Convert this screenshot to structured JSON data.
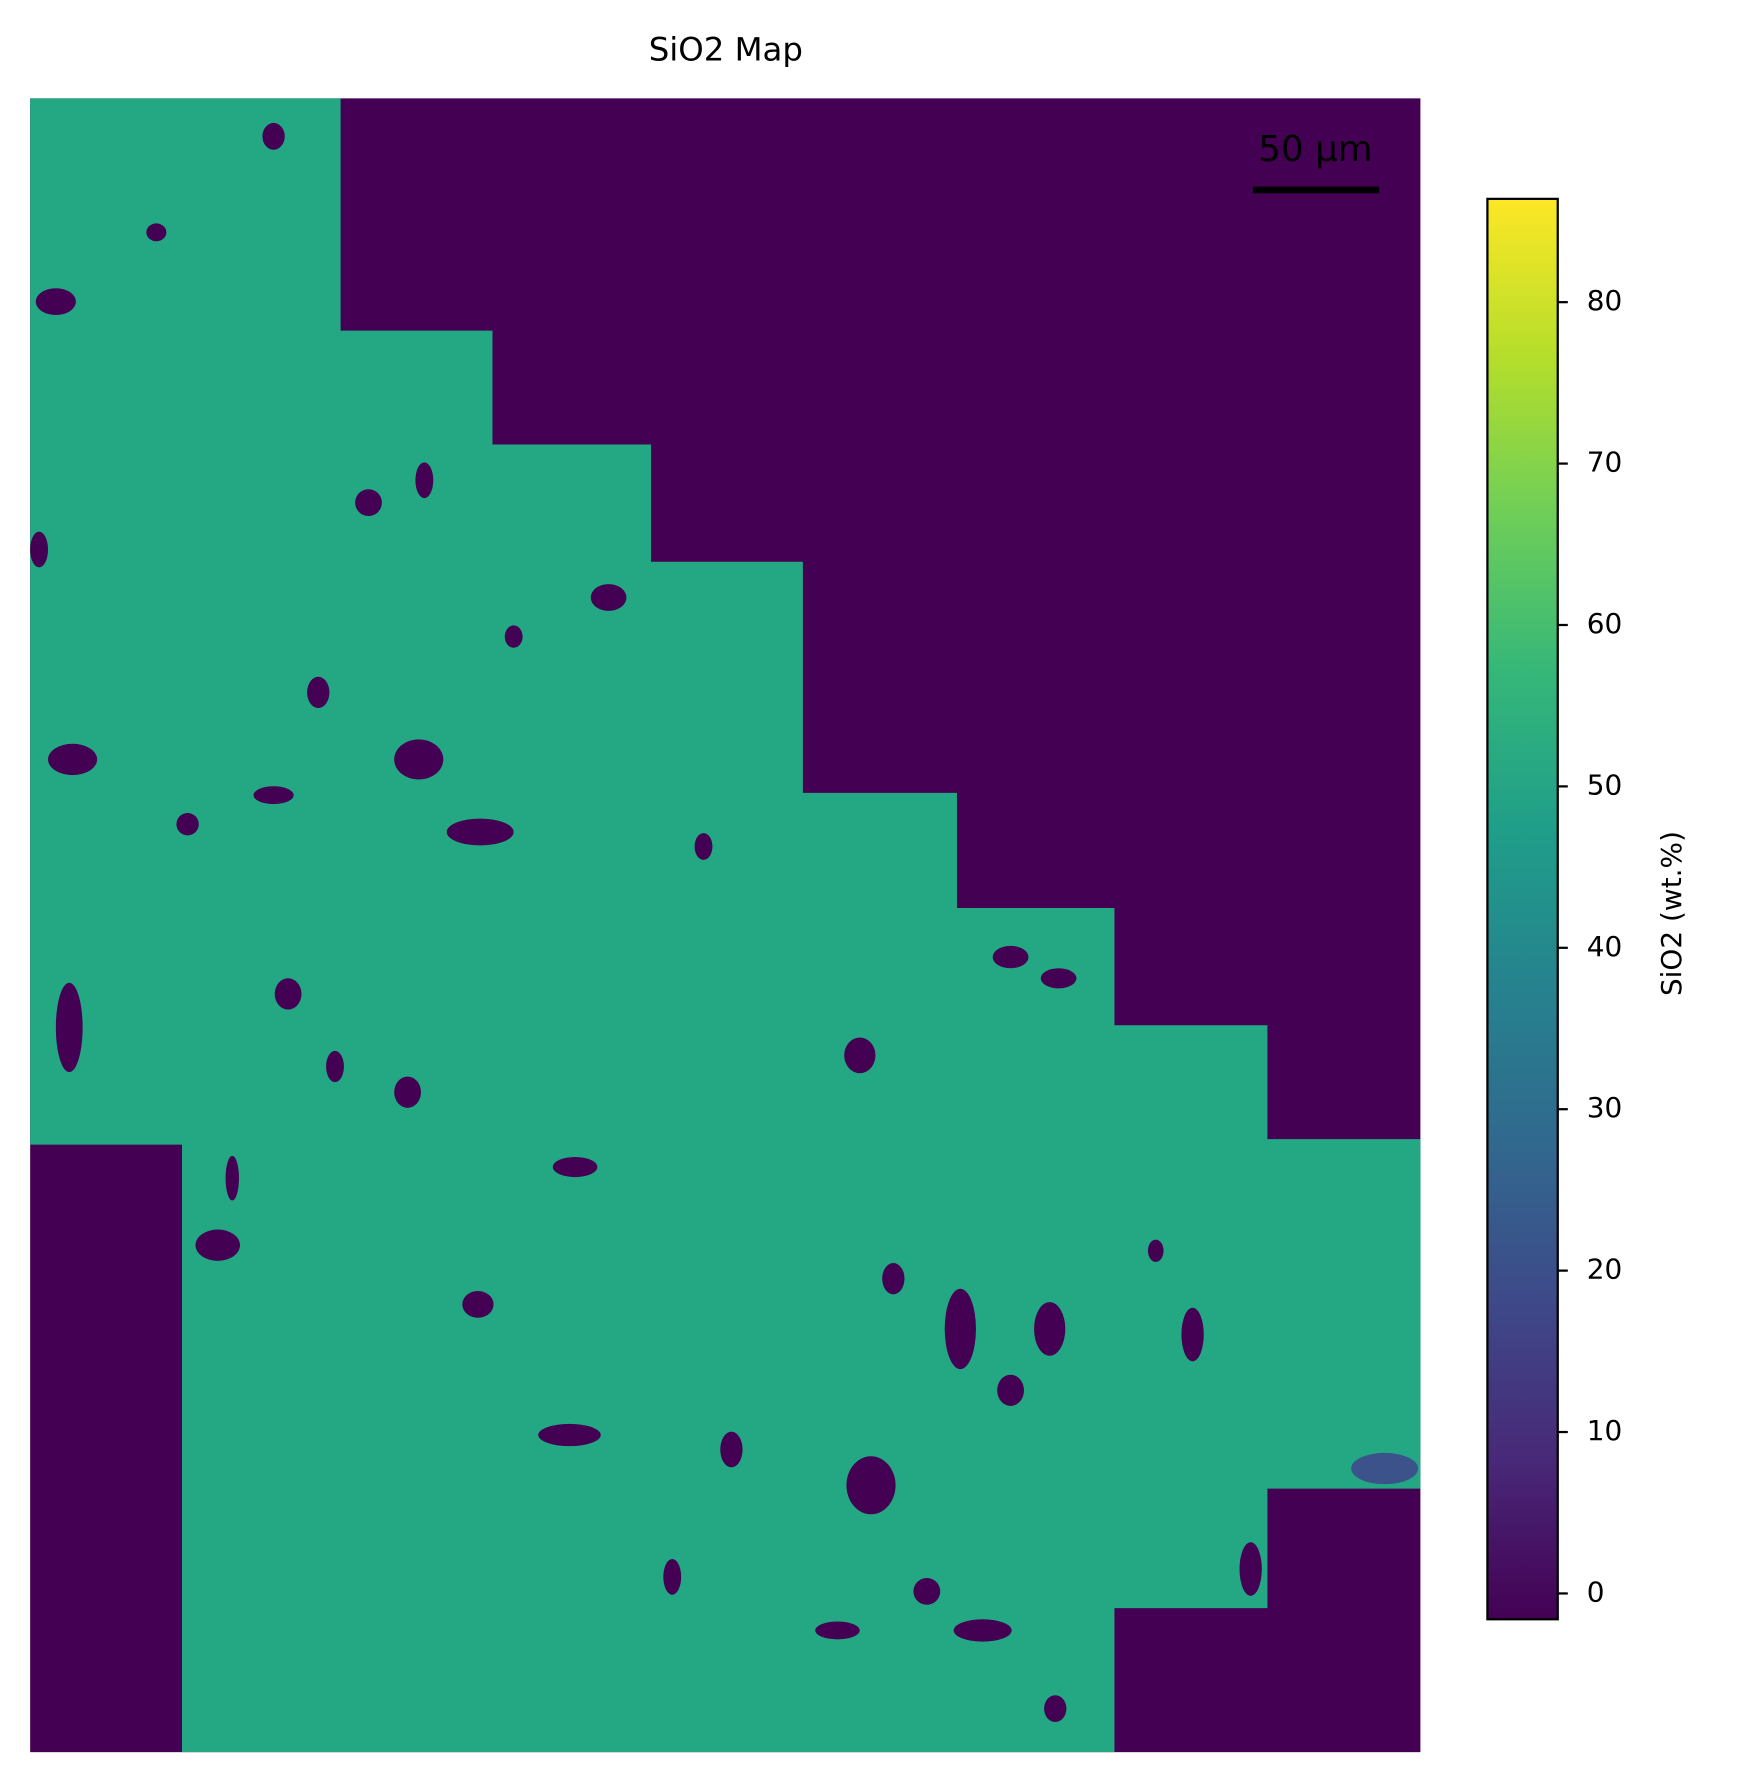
{
  "chart_data": {
    "type": "heatmap",
    "title": "SiO2 Map",
    "colorbar_label": "SiO2 (wt.%)",
    "colormap": "viridis",
    "clim": [
      -1.6,
      86.4
    ],
    "cticks": [
      0,
      10,
      20,
      30,
      40,
      50,
      60,
      70,
      80
    ],
    "scale_bar": "50 µm"
  }
}
